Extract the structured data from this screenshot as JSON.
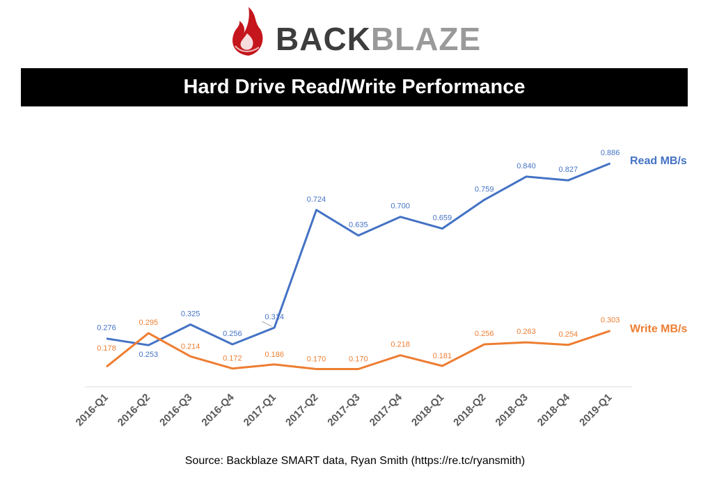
{
  "brand": {
    "name_part1": "BACK",
    "name_part2": "BLAZE",
    "colors": {
      "dark": "#3d3d3d",
      "light": "#9a9a9a",
      "flame": "#c4161c"
    }
  },
  "chart_data": {
    "type": "line",
    "title": "Hard Drive Read/Write Performance",
    "categories": [
      "2016-Q1",
      "2016-Q2",
      "2016-Q3",
      "2016-Q4",
      "2017-Q1",
      "2017-Q2",
      "2017-Q3",
      "2017-Q4",
      "2018-Q1",
      "2018-Q2",
      "2018-Q3",
      "2018-Q4",
      "2019-Q1"
    ],
    "series": [
      {
        "name": "Read MB/s",
        "color": "#4472c4",
        "values": [
          0.276,
          0.253,
          0.325,
          0.256,
          0.314,
          0.724,
          0.635,
          0.7,
          0.659,
          0.759,
          0.84,
          0.827,
          0.886
        ],
        "labels": [
          "0.276",
          "0.253",
          "0.325",
          "0.256",
          "0.314",
          "0.724",
          "0.635",
          "0.700",
          "0.659",
          "0.759",
          "0.840",
          "0.827",
          "0.886"
        ]
      },
      {
        "name": "Write MB/s",
        "color": "#ed7d31",
        "values": [
          0.178,
          0.295,
          0.214,
          0.172,
          0.186,
          0.17,
          0.17,
          0.218,
          0.181,
          0.256,
          0.263,
          0.254,
          0.303
        ],
        "labels": [
          "0.178",
          "0.295",
          "0.214",
          "0.172",
          "0.186",
          "0.170",
          "0.170",
          "0.218",
          "0.181",
          "0.256",
          "0.263",
          "0.254",
          "0.303"
        ]
      }
    ],
    "legend": "right, at line ends",
    "grid": false,
    "ylim": [
      0.12,
      1.0
    ]
  },
  "source": "Source: Backblaze SMART data, Ryan Smith (https://re.tc/ryansmith)"
}
